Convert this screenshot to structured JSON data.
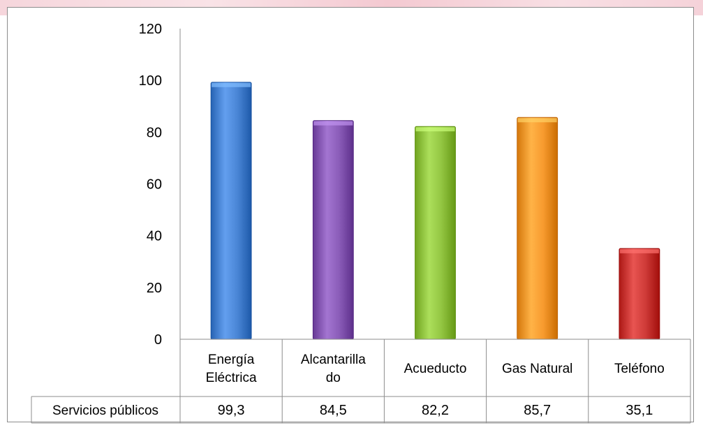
{
  "chart_data": {
    "type": "bar",
    "categories": [
      "Energía Eléctrica",
      "Alcantarillado",
      "Acueducto",
      "Gas Natural",
      "Teléfono"
    ],
    "category_label_lines": [
      [
        "Energía",
        "Eléctrica"
      ],
      [
        "Alcantarilla",
        "do"
      ],
      [
        "Acueducto"
      ],
      [
        "Gas Natural"
      ],
      [
        "Teléfono"
      ]
    ],
    "series": [
      {
        "name": "Servicios públicos",
        "values": [
          99.3,
          84.5,
          82.2,
          85.7,
          35.1
        ]
      }
    ],
    "table_values": [
      "99,3",
      "84,5",
      "82,2",
      "85,7",
      "35,1"
    ],
    "yticks": [
      "0",
      "20",
      "40",
      "60",
      "80",
      "100",
      "120"
    ],
    "ylim": [
      0,
      120
    ],
    "grid": false,
    "legend": "data-table",
    "colors": [
      "#4a86d6",
      "#8a5cb8",
      "#93c642",
      "#f79a2e",
      "#cf3b38"
    ]
  }
}
